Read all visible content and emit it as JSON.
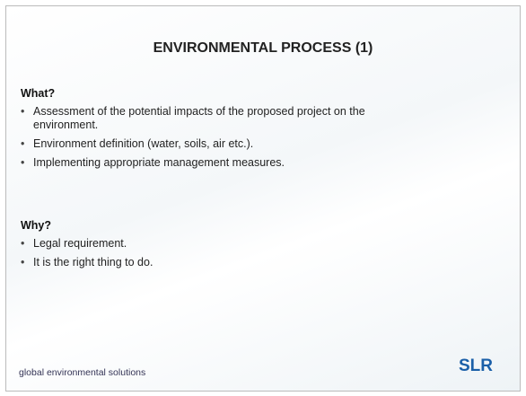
{
  "title": "ENVIRONMENTAL PROCESS (1)",
  "sections": [
    {
      "heading": "What?",
      "items": [
        "Assessment of the potential impacts of the proposed project on the environment.",
        "Environment definition (water, soils, air etc.).",
        "Implementing appropriate management measures."
      ]
    },
    {
      "heading": "Why?",
      "items": [
        "Legal requirement.",
        "It is the right thing to do."
      ]
    }
  ],
  "footer": "global environmental solutions",
  "logo": "SLR"
}
